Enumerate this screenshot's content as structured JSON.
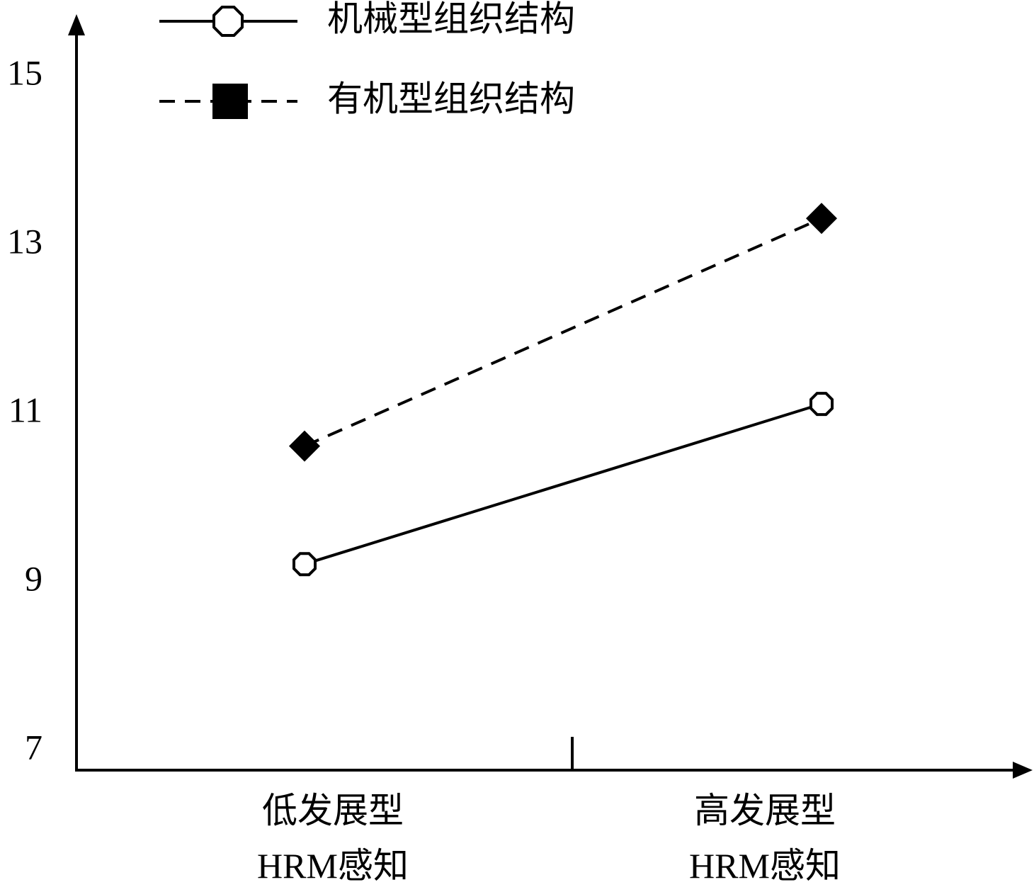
{
  "chart_data": {
    "type": "line",
    "categories": [
      "低发展型\nHRM感知",
      "高发展型\nHRM感知"
    ],
    "series": [
      {
        "name": "机械型组织结构",
        "color": "#000000",
        "dash": "solid",
        "marker": "octagon",
        "values": [
          9.2,
          11.1
        ]
      },
      {
        "name": "有机型组织结构",
        "color": "#000000",
        "dash": "dashed",
        "marker": "square",
        "values": [
          10.6,
          13.3
        ]
      }
    ],
    "ylim": [
      6.75,
      15.65
    ],
    "yticks": [
      7,
      9,
      11,
      13,
      15
    ],
    "legend": "top-left"
  }
}
